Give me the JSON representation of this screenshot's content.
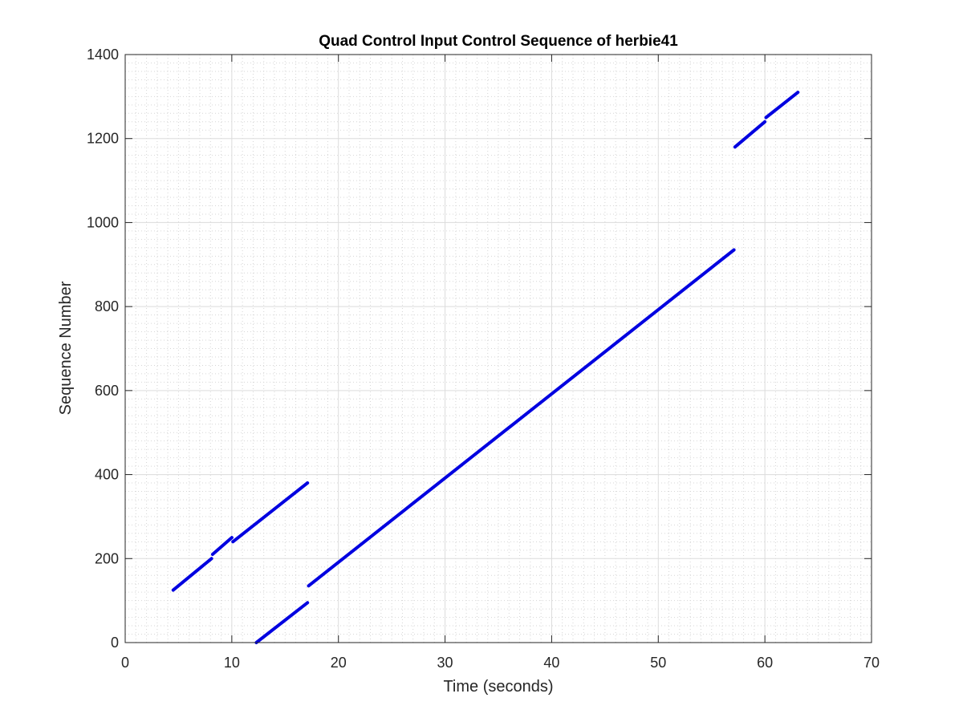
{
  "chart_data": {
    "type": "line",
    "title": "Quad Control Input Control Sequence of herbie41",
    "xlabel": "Time (seconds)",
    "ylabel": "Sequence Number",
    "xlim": [
      0,
      70
    ],
    "ylim": [
      0,
      1400
    ],
    "xticks": [
      0,
      10,
      20,
      30,
      40,
      50,
      60,
      70
    ],
    "yticks": [
      0,
      200,
      400,
      600,
      800,
      1000,
      1200,
      1400
    ],
    "x_minor_step": 1,
    "y_minor_step": 20,
    "grid": true,
    "minor_grid": true,
    "legend": "none",
    "line_color": "#0000e0",
    "series": [
      {
        "segments": [
          {
            "x": [
              4.5,
              8.1
            ],
            "y": [
              125,
              200
            ]
          },
          {
            "x": [
              8.2,
              10.0
            ],
            "y": [
              210,
              250
            ]
          },
          {
            "x": [
              10.1,
              17.1
            ],
            "y": [
              240,
              380
            ]
          },
          {
            "x": [
              12.3,
              17.1
            ],
            "y": [
              0,
              95
            ]
          },
          {
            "x": [
              17.2,
              57.1
            ],
            "y": [
              135,
              935
            ]
          },
          {
            "x": [
              57.2,
              60.0
            ],
            "y": [
              1180,
              1240
            ]
          },
          {
            "x": [
              60.1,
              63.1
            ],
            "y": [
              1250,
              1310
            ]
          }
        ]
      }
    ]
  }
}
